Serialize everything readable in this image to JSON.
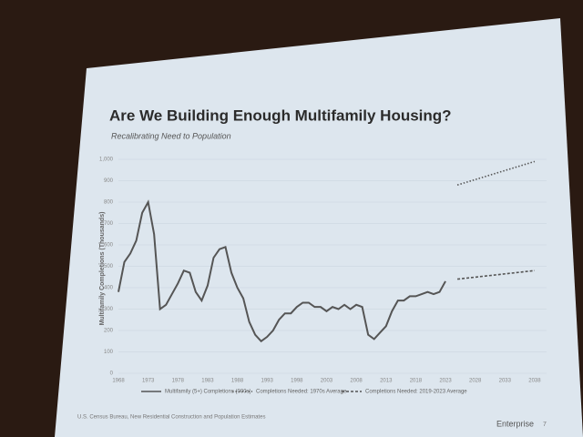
{
  "chart_data": {
    "type": "line",
    "title": "Are We Building Enough Multifamily Housing?",
    "subtitle": "Recalibrating Need to Population",
    "y_label": "Multifamily Completions (Thousands)",
    "xlim": [
      1968,
      2040
    ],
    "ylim": [
      0,
      1000
    ],
    "xticks": [
      1968,
      1973,
      1978,
      1983,
      1988,
      1993,
      1998,
      2003,
      2008,
      2013,
      2018,
      2023,
      2028,
      2033,
      2038
    ],
    "yticks": [
      0,
      100,
      200,
      300,
      400,
      500,
      600,
      700,
      800,
      900,
      {
        "value": 1000,
        "label": "1,000"
      }
    ],
    "grid": true,
    "series": [
      {
        "name": "Multifamily (5+) Completions (000s)",
        "color": "#555555",
        "style": "solid",
        "x": [
          1968,
          1969,
          1970,
          1971,
          1972,
          1973,
          1974,
          1975,
          1976,
          1977,
          1978,
          1979,
          1980,
          1981,
          1982,
          1983,
          1984,
          1985,
          1986,
          1987,
          1988,
          1989,
          1990,
          1991,
          1992,
          1993,
          1994,
          1995,
          1996,
          1997,
          1998,
          1999,
          2000,
          2001,
          2002,
          2003,
          2004,
          2005,
          2006,
          2007,
          2008,
          2009,
          2010,
          2011,
          2012,
          2013,
          2014,
          2015,
          2016,
          2017,
          2018,
          2019,
          2020,
          2021,
          2022,
          2023
        ],
        "values": [
          380,
          520,
          560,
          620,
          750,
          800,
          650,
          300,
          320,
          370,
          420,
          480,
          470,
          380,
          340,
          410,
          540,
          580,
          590,
          470,
          400,
          350,
          240,
          180,
          150,
          170,
          200,
          250,
          280,
          280,
          310,
          330,
          330,
          310,
          310,
          290,
          310,
          300,
          320,
          300,
          320,
          310,
          180,
          160,
          190,
          220,
          290,
          340,
          340,
          360,
          360,
          370,
          380,
          370,
          380,
          430
        ]
      },
      {
        "name": "Completions Needed: 1970s Average",
        "color": "#555555",
        "style": "dotted",
        "x": [
          2025,
          2038
        ],
        "values": [
          880,
          990
        ]
      },
      {
        "name": "Completions Needed: 2019-2023 Average",
        "color": "#555555",
        "style": "dashed",
        "x": [
          2025,
          2038
        ],
        "values": [
          440,
          480
        ]
      }
    ],
    "source": "U.S. Census Bureau, New Residential Construction and Population Estimates",
    "brand": "Enterprise",
    "page_number": "7"
  }
}
